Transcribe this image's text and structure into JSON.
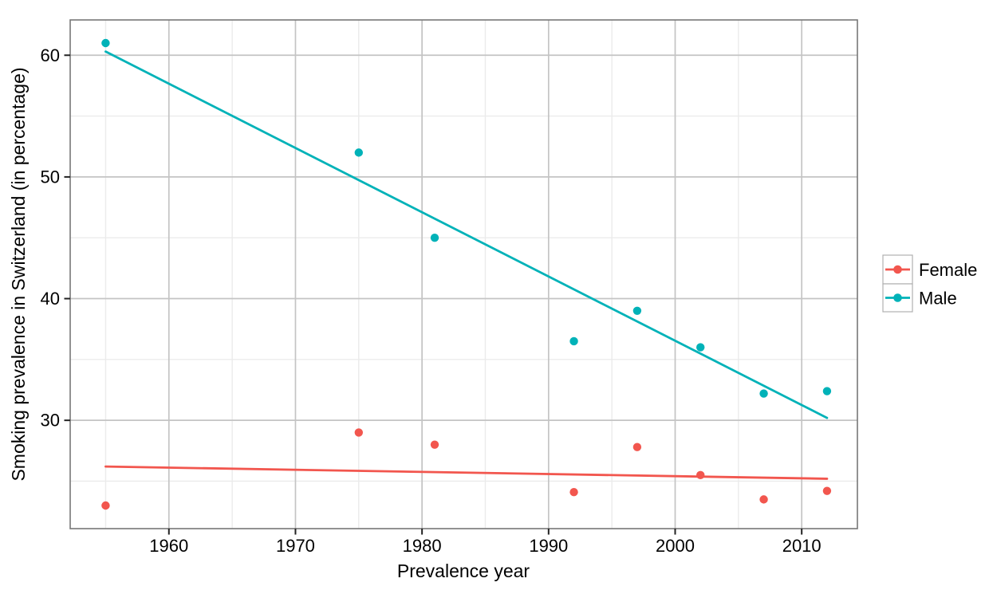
{
  "chart_data": {
    "type": "scatter",
    "title": "",
    "xlabel": "Prevalence year",
    "ylabel": "Smoking prevalence in Switzerland (in percentage)",
    "x": [
      1955,
      1975,
      1981,
      1992,
      1997,
      2002,
      2007,
      2012
    ],
    "series": [
      {
        "name": "Female",
        "color": "#F2564E",
        "values": [
          23,
          29,
          28,
          24.1,
          27.8,
          25.5,
          23.5,
          24.2
        ],
        "trend": {
          "x": [
            1955,
            2012
          ],
          "y": [
            26.2,
            25.2
          ]
        }
      },
      {
        "name": "Male",
        "color": "#00B2B8",
        "values": [
          61,
          52,
          45,
          36.5,
          39,
          36,
          32.2,
          32.4
        ],
        "trend": {
          "x": [
            1955,
            2012
          ],
          "y": [
            60.3,
            30.2
          ]
        }
      }
    ],
    "x_ticks": [
      1960,
      1970,
      1980,
      1990,
      2000,
      2010
    ],
    "y_ticks": [
      30,
      40,
      50,
      60
    ],
    "x_minor_ticks": [
      1955,
      1965,
      1975,
      1985,
      1995,
      2005
    ],
    "y_minor_ticks": [
      25,
      35,
      45,
      55
    ],
    "xlim": [
      1952.2,
      2014.4
    ],
    "ylim": [
      21.1,
      62.9
    ],
    "grid": "major+minor",
    "legend_position": "right"
  },
  "legend": {
    "items": [
      {
        "label": "Female",
        "color": "#F2564E"
      },
      {
        "label": "Male",
        "color": "#00B2B8"
      }
    ]
  },
  "colors": {
    "background": "#FFFFFF",
    "panel_border": "#777777",
    "grid_major": "#C4C4C4",
    "grid_minor": "#EBEBEB",
    "axis_text": "#000000",
    "female_series": "#F2564E",
    "male_series": "#00B2B8"
  }
}
